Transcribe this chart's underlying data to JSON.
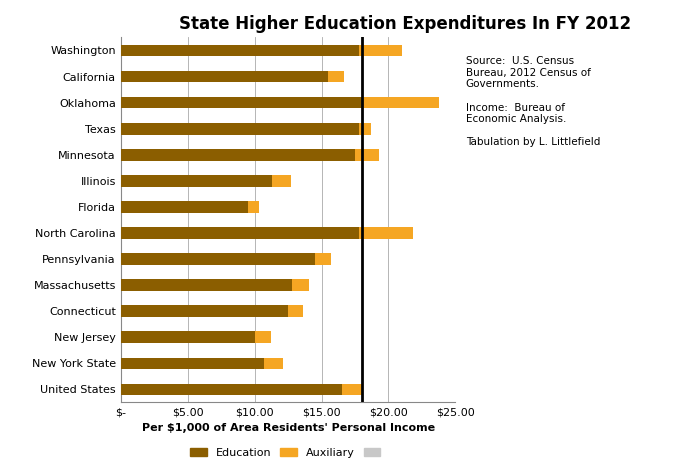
{
  "title": "State Higher Education Expenditures In FY 2012",
  "xlabel": "Per $1,000 of Area Residents' Personal Income",
  "categories": [
    "United States",
    "New York State",
    "New Jersey",
    "Connecticut",
    "Massachusetts",
    "Pennsylvania",
    "North Carolina",
    "Florida",
    "Illinois",
    "Minnesota",
    "Texas",
    "Oklahoma",
    "California",
    "Washington"
  ],
  "education": [
    16.5,
    10.7,
    10.0,
    12.5,
    12.8,
    14.5,
    17.8,
    9.5,
    11.3,
    17.5,
    17.8,
    18.0,
    15.5,
    17.8
  ],
  "auxiliary": [
    1.6,
    1.4,
    1.2,
    1.1,
    1.3,
    1.2,
    4.0,
    0.8,
    1.4,
    1.8,
    0.9,
    5.8,
    1.2,
    3.2
  ],
  "vline_x": 18.0,
  "edu_color": "#8B5E00",
  "aux_color": "#F5A623",
  "ghost_color": "#C8C8C8",
  "background_color": "#FFFFFF",
  "annotation_text": "Source:  U.S. Census\nBureau, 2012 Census of\nGovernments.\n\nIncome:  Bureau of\nEconomic Analysis.\n\nTabulation by L. Littlefield",
  "xlim": [
    0,
    25
  ],
  "xticks": [
    0,
    5,
    10,
    15,
    20,
    25
  ],
  "xtick_labels": [
    "$-",
    "$5.00",
    "$10.00",
    "$15.00",
    "$20.00",
    "$25.00"
  ],
  "title_fontsize": 12,
  "label_fontsize": 8,
  "tick_fontsize": 8,
  "annot_fontsize": 7.5,
  "bar_height": 0.45
}
